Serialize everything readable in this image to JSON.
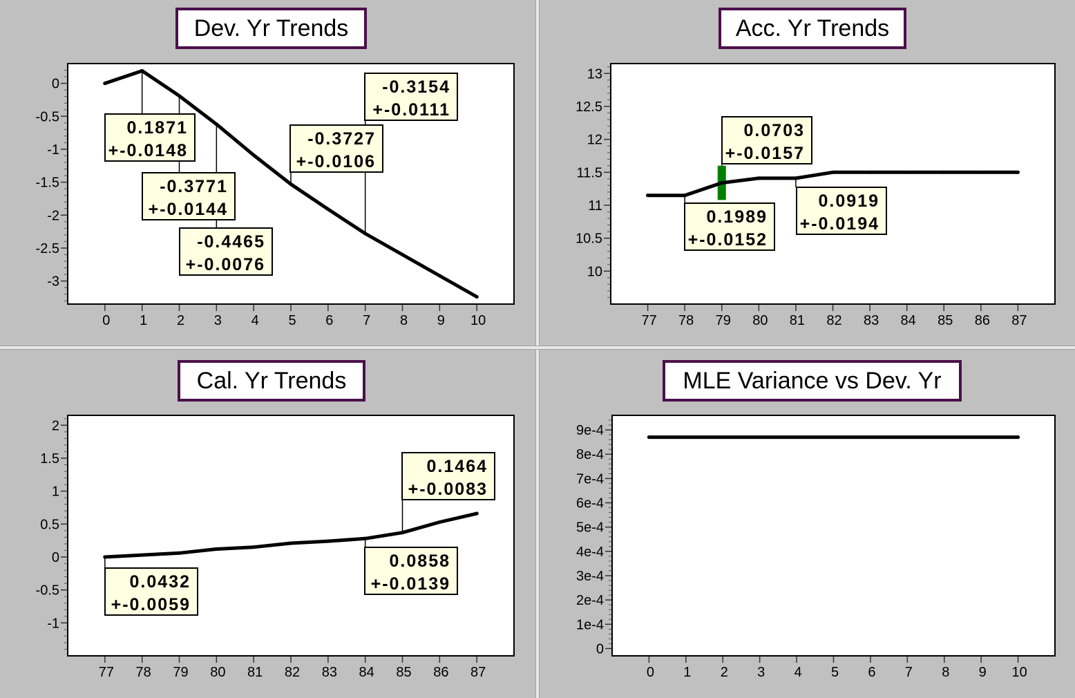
{
  "chart_data": [
    {
      "type": "line",
      "title": "Dev. Yr Trends",
      "x": [
        0,
        1,
        2,
        3,
        4,
        5,
        6,
        7,
        8,
        9,
        10
      ],
      "y": [
        0,
        0.19,
        -0.19,
        -0.62,
        -1.09,
        -1.53,
        -1.91,
        -2.28,
        -2.6,
        -2.92,
        -3.24
      ],
      "xticks": [
        "0",
        "1",
        "2",
        "3",
        "4",
        "5",
        "6",
        "7",
        "8",
        "9",
        "10"
      ],
      "ytick_values": [
        0,
        -0.5,
        -1,
        -1.5,
        -2,
        -2.5,
        -3
      ],
      "ytick_labels": [
        "0",
        "-0.5",
        "-1",
        "-1.5",
        "-2",
        "-2.5",
        "-3"
      ],
      "ylim": [
        -3.35,
        0.3
      ],
      "xlim": [
        -1,
        11
      ],
      "grid": false,
      "annotations": [
        {
          "x": 1,
          "value": "0.1871",
          "error": "+-0.0148"
        },
        {
          "x": 2,
          "value": "-0.3771",
          "error": "+-0.0144"
        },
        {
          "x": 3,
          "value": "-0.4465",
          "error": "+-0.0076"
        },
        {
          "x": 5,
          "value": "-0.3727",
          "error": "+-0.0106"
        },
        {
          "x": 7,
          "value": "-0.3154",
          "error": "+-0.0111"
        }
      ]
    },
    {
      "type": "line",
      "title": "Acc. Yr Trends",
      "x": [
        77,
        78,
        79,
        80,
        81,
        82,
        83,
        84,
        85,
        86,
        87
      ],
      "y": [
        11.15,
        11.15,
        11.34,
        11.41,
        11.41,
        11.5,
        11.5,
        11.5,
        11.5,
        11.5,
        11.5
      ],
      "xticks": [
        "77",
        "78",
        "79",
        "80",
        "81",
        "82",
        "83",
        "84",
        "85",
        "86",
        "87"
      ],
      "ytick_values": [
        13,
        12.5,
        12,
        11.5,
        11,
        10.5,
        10
      ],
      "ytick_labels": [
        "13",
        "12.5",
        "12",
        "11.5",
        "11",
        "10.5",
        "10"
      ],
      "ylim": [
        9.5,
        13.15
      ],
      "xlim": [
        76,
        88
      ],
      "grid": false,
      "highlight": {
        "x": 79,
        "y_low": 11.08,
        "y_high": 11.6,
        "color": "#008000"
      },
      "annotations": [
        {
          "x": 79,
          "value": "0.0703",
          "error": "+-0.0157"
        },
        {
          "x": 78,
          "value": "0.1989",
          "error": "+-0.0152"
        },
        {
          "x": 81,
          "value": "0.0919",
          "error": "+-0.0194"
        }
      ]
    },
    {
      "type": "line",
      "title": "Cal. Yr Trends",
      "x": [
        77,
        78,
        79,
        80,
        81,
        82,
        83,
        84,
        85,
        86,
        87
      ],
      "y": [
        0,
        0.03,
        0.06,
        0.12,
        0.15,
        0.21,
        0.24,
        0.28,
        0.37,
        0.53,
        0.66
      ],
      "xticks": [
        "77",
        "78",
        "79",
        "80",
        "81",
        "82",
        "83",
        "84",
        "85",
        "86",
        "87"
      ],
      "ytick_values": [
        2,
        1.5,
        1,
        0.5,
        0,
        -0.5,
        -1
      ],
      "ytick_labels": [
        "2",
        "1.5",
        "1",
        "0.5",
        "0",
        "-0.5",
        "-1"
      ],
      "ylim": [
        -1.5,
        2.15
      ],
      "xlim": [
        76,
        88
      ],
      "grid": false,
      "annotations": [
        {
          "x": 77,
          "value": "0.0432",
          "error": "+-0.0059"
        },
        {
          "x": 84,
          "value": "0.0858",
          "error": "+-0.0139"
        },
        {
          "x": 85,
          "value": "0.1464",
          "error": "+-0.0083"
        }
      ]
    },
    {
      "type": "line",
      "title": "MLE Variance vs Dev. Yr",
      "x": [
        0,
        1,
        2,
        3,
        4,
        5,
        6,
        7,
        8,
        9,
        10
      ],
      "y": [
        0.00087,
        0.00087,
        0.00087,
        0.00087,
        0.00087,
        0.00087,
        0.00087,
        0.00087,
        0.00087,
        0.00087,
        0.00087
      ],
      "xticks": [
        "0",
        "1",
        "2",
        "3",
        "4",
        "5",
        "6",
        "7",
        "8",
        "9",
        "10"
      ],
      "ytick_values": [
        0.0009,
        0.0008,
        0.0007,
        0.0006,
        0.0005,
        0.0004,
        0.0003,
        0.0002,
        0.0001,
        0
      ],
      "ytick_labels": [
        "9e-4",
        "8e-4",
        "7e-4",
        "6e-4",
        "5e-4",
        "4e-4",
        "3e-4",
        "2e-4",
        "1e-4",
        "0"
      ],
      "ylim": [
        -3e-05,
        0.00096
      ],
      "xlim": [
        -1,
        11
      ],
      "grid": false,
      "annotations": []
    }
  ],
  "colors": {
    "pane_background": "#c0c0c0",
    "plot_background": "#ffffff",
    "title_border": "#4b0f4b",
    "annotation_fill": "#ffffe1",
    "line": "#000000",
    "highlight": "#008000"
  }
}
